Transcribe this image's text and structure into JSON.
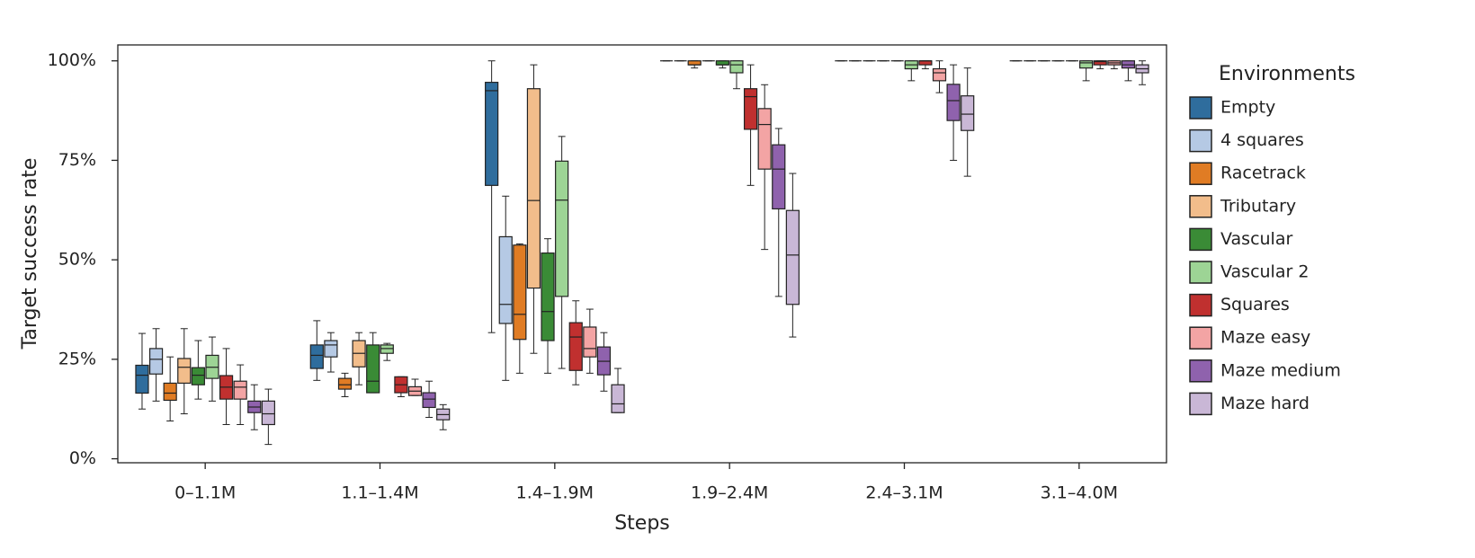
{
  "chart_data": {
    "type": "box",
    "y_label": "Target success rate",
    "x_label": "Steps",
    "legend_title": "Environments",
    "categories": [
      "0–1.1M",
      "1.1–1.4M",
      "1.4–1.9M",
      "1.9–2.4M",
      "2.4–3.1M",
      "3.1–4.0M"
    ],
    "ylim": [
      -1,
      104
    ],
    "yticks": [
      {
        "value": 0,
        "label": "0%"
      },
      {
        "value": 25,
        "label": "25%"
      },
      {
        "value": 50,
        "label": "50%"
      },
      {
        "value": 75,
        "label": "75%"
      },
      {
        "value": 100,
        "label": "100%"
      }
    ],
    "legend": "right",
    "series": [
      {
        "name": "Empty",
        "color": "#2f6d9d",
        "values": [
          {
            "low": 12.5,
            "q1": 16.5,
            "median": 21,
            "q3": 23.5,
            "high": 31.5
          },
          {
            "low": 19.7,
            "q1": 22.7,
            "median": 26,
            "q3": 28.6,
            "high": 34.7
          },
          {
            "low": 31.7,
            "q1": 68.7,
            "median": 92.5,
            "q3": 94.6,
            "high": 100
          },
          {
            "low": 100,
            "q1": 100,
            "median": 100,
            "q3": 100,
            "high": 100
          },
          {
            "low": 100,
            "q1": 100,
            "median": 100,
            "q3": 100,
            "high": 100
          },
          {
            "low": 100,
            "q1": 100,
            "median": 100,
            "q3": 100,
            "high": 100
          }
        ]
      },
      {
        "name": "4 squares",
        "color": "#b5c9e4",
        "values": [
          {
            "low": 14.5,
            "q1": 21.3,
            "median": 25,
            "q3": 27.7,
            "high": 32.7
          },
          {
            "low": 21.8,
            "q1": 25.6,
            "median": 28.6,
            "q3": 29.7,
            "high": 31.7
          },
          {
            "low": 19.7,
            "q1": 34,
            "median": 38.8,
            "q3": 55.8,
            "high": 66
          },
          {
            "low": 100,
            "q1": 100,
            "median": 100,
            "q3": 100,
            "high": 100
          },
          {
            "low": 100,
            "q1": 100,
            "median": 100,
            "q3": 100,
            "high": 100
          },
          {
            "low": 100,
            "q1": 100,
            "median": 100,
            "q3": 100,
            "high": 100
          }
        ]
      },
      {
        "name": "Racetrack",
        "color": "#e07c24",
        "values": [
          {
            "low": 9.5,
            "q1": 14.7,
            "median": 16.5,
            "q3": 19,
            "high": 25.6
          },
          {
            "low": 15.6,
            "q1": 17.5,
            "median": 18.6,
            "q3": 20.2,
            "high": 21.5
          },
          {
            "low": 21.5,
            "q1": 30,
            "median": 36.3,
            "q3": 53.7,
            "high": 54
          },
          {
            "low": 98.2,
            "q1": 99,
            "median": 99,
            "q3": 100,
            "high": 100
          },
          {
            "low": 100,
            "q1": 100,
            "median": 100,
            "q3": 100,
            "high": 100
          },
          {
            "low": 100,
            "q1": 100,
            "median": 100,
            "q3": 100,
            "high": 100
          }
        ]
      },
      {
        "name": "Tributary",
        "color": "#f2bd8b",
        "values": [
          {
            "low": 11.3,
            "q1": 19,
            "median": 23,
            "q3": 25.2,
            "high": 32.7
          },
          {
            "low": 18.6,
            "q1": 23.1,
            "median": 26.5,
            "q3": 29.7,
            "high": 31.7
          },
          {
            "low": 26.5,
            "q1": 42.9,
            "median": 64.9,
            "q3": 93,
            "high": 99
          },
          {
            "low": 100,
            "q1": 100,
            "median": 100,
            "q3": 100,
            "high": 100
          },
          {
            "low": 100,
            "q1": 100,
            "median": 100,
            "q3": 100,
            "high": 100
          },
          {
            "low": 100,
            "q1": 100,
            "median": 100,
            "q3": 100,
            "high": 100
          }
        ]
      },
      {
        "name": "Vascular",
        "color": "#3a8b36",
        "values": [
          {
            "low": 15,
            "q1": 18.6,
            "median": 21,
            "q3": 22.9,
            "high": 29.7
          },
          {
            "low": 16.6,
            "q1": 16.6,
            "median": 19.5,
            "q3": 28.6,
            "high": 31.7
          },
          {
            "low": 21.5,
            "q1": 29.7,
            "median": 37,
            "q3": 51.7,
            "high": 55.3
          },
          {
            "low": 98.2,
            "q1": 99,
            "median": 99,
            "q3": 100,
            "high": 100
          },
          {
            "low": 100,
            "q1": 100,
            "median": 100,
            "q3": 100,
            "high": 100
          },
          {
            "low": 100,
            "q1": 100,
            "median": 100,
            "q3": 100,
            "high": 100
          }
        ]
      },
      {
        "name": "Vascular 2",
        "color": "#9dd495",
        "values": [
          {
            "low": 14.5,
            "q1": 20.2,
            "median": 23,
            "q3": 26,
            "high": 30.6
          },
          {
            "low": 24.7,
            "q1": 26.5,
            "median": 27.7,
            "q3": 28.6,
            "high": 29
          },
          {
            "low": 22.7,
            "q1": 40.8,
            "median": 65,
            "q3": 74.8,
            "high": 81
          },
          {
            "low": 93,
            "q1": 97,
            "median": 99,
            "q3": 100,
            "high": 100
          },
          {
            "low": 95,
            "q1": 98,
            "median": 99,
            "q3": 100,
            "high": 100
          },
          {
            "low": 95,
            "q1": 98.2,
            "median": 99.5,
            "q3": 100,
            "high": 100
          }
        ]
      },
      {
        "name": "Squares",
        "color": "#c0302f",
        "values": [
          {
            "low": 8.6,
            "q1": 15,
            "median": 18,
            "q3": 20.9,
            "high": 27.7
          },
          {
            "low": 15.6,
            "q1": 16.6,
            "median": 18.6,
            "q3": 20.6,
            "high": 20.6
          },
          {
            "low": 18.6,
            "q1": 22.2,
            "median": 30.6,
            "q3": 34.2,
            "high": 39.7
          },
          {
            "low": 68.7,
            "q1": 82.8,
            "median": 91,
            "q3": 93,
            "high": 99
          },
          {
            "low": 98,
            "q1": 99,
            "median": 100,
            "q3": 100,
            "high": 100
          },
          {
            "low": 98,
            "q1": 99,
            "median": 99.8,
            "q3": 100,
            "high": 100
          }
        ]
      },
      {
        "name": "Maze easy",
        "color": "#f3a4a4",
        "values": [
          {
            "low": 8.6,
            "q1": 15,
            "median": 18,
            "q3": 19.5,
            "high": 23.6
          },
          {
            "low": 15.9,
            "q1": 15.9,
            "median": 17,
            "q3": 18.1,
            "high": 20
          },
          {
            "low": 21.5,
            "q1": 25.6,
            "median": 27.7,
            "q3": 33.1,
            "high": 37.6
          },
          {
            "low": 52.6,
            "q1": 72.8,
            "median": 84,
            "q3": 88,
            "high": 94
          },
          {
            "low": 92,
            "q1": 95,
            "median": 97,
            "q3": 98,
            "high": 100
          },
          {
            "low": 98,
            "q1": 99,
            "median": 99.5,
            "q3": 100,
            "high": 100
          }
        ]
      },
      {
        "name": "Maze medium",
        "color": "#8f62ad",
        "values": [
          {
            "low": 7.3,
            "q1": 11.6,
            "median": 13,
            "q3": 14.5,
            "high": 18.6
          },
          {
            "low": 10.4,
            "q1": 12.9,
            "median": 15,
            "q3": 16.6,
            "high": 19.5
          },
          {
            "low": 17,
            "q1": 21.1,
            "median": 24.5,
            "q3": 28.1,
            "high": 31.7
          },
          {
            "low": 40.8,
            "q1": 62.8,
            "median": 72.8,
            "q3": 78.9,
            "high": 83
          },
          {
            "low": 75,
            "q1": 85,
            "median": 90,
            "q3": 94.1,
            "high": 99
          },
          {
            "low": 95,
            "q1": 98.2,
            "median": 99,
            "q3": 100,
            "high": 100
          }
        ]
      },
      {
        "name": "Maze hard",
        "color": "#c9b7d6",
        "values": [
          {
            "low": 3.6,
            "q1": 8.6,
            "median": 11.3,
            "q3": 14.5,
            "high": 17.5
          },
          {
            "low": 7.3,
            "q1": 9.8,
            "median": 11.1,
            "q3": 12.5,
            "high": 13.6
          },
          {
            "low": 11.6,
            "q1": 11.6,
            "median": 13.8,
            "q3": 18.6,
            "high": 22.7
          },
          {
            "low": 30.6,
            "q1": 38.8,
            "median": 51.2,
            "q3": 62.4,
            "high": 71.7
          },
          {
            "low": 71,
            "q1": 82.5,
            "median": 86.6,
            "q3": 91.2,
            "high": 98.2
          },
          {
            "low": 94,
            "q1": 97,
            "median": 98,
            "q3": 99,
            "high": 100
          }
        ]
      }
    ]
  }
}
